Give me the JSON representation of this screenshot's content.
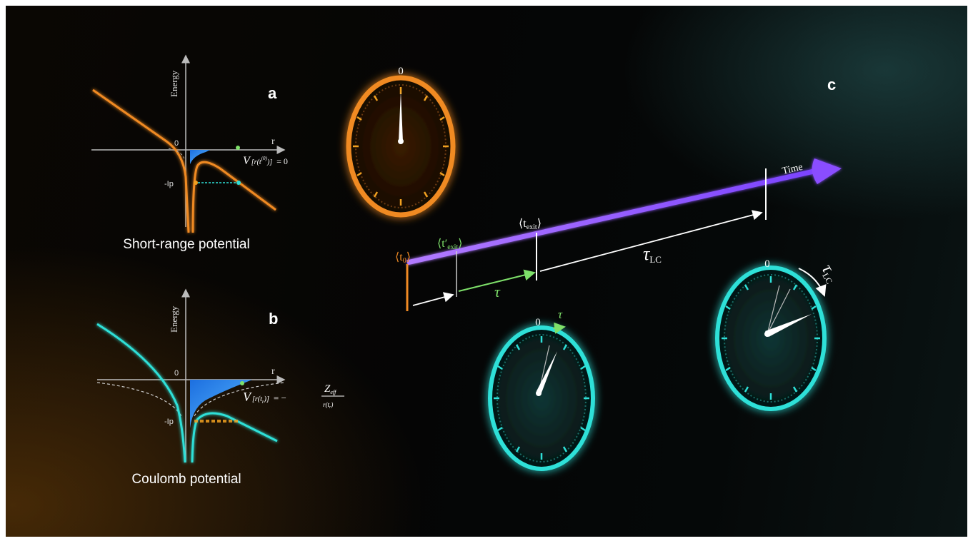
{
  "panels": {
    "a": {
      "letter": "a",
      "caption": "Short-range potential",
      "y_axis_label": "Energy",
      "x_axis_label": "r",
      "zero_label": "0",
      "ip_label": "-Ip",
      "equation_lhs": "V",
      "equation_arg": "[r(t",
      "equation_arg_sup": "(0)",
      "equation_arg_close": ")]",
      "equation_rhs": "= 0"
    },
    "b": {
      "letter": "b",
      "caption": "Coulomb potential",
      "y_axis_label": "Energy",
      "x_axis_label": "r",
      "zero_label": "0",
      "ip_label": "-Ip",
      "equation_lhs": "V",
      "equation_arg": "[r(t",
      "equation_arg_sub": "r",
      "equation_arg_close": ")]",
      "equation_eq": "= −",
      "equation_num": "Z",
      "equation_num_sub": "eff",
      "equation_den": "r(t",
      "equation_den_sub": "r",
      "equation_den_close": ")"
    },
    "c": {
      "letter": "c",
      "time_label": "Time",
      "t0_label": "⟨t",
      "t0_sub": "0",
      "t0_close": "⟩",
      "texit_prime_label": "⟨t′",
      "texit_prime_sub": "exit",
      "texit_prime_close": "⟩",
      "texit_label": "⟨t",
      "texit_sub": "exit",
      "texit_close": "⟩",
      "tau_label": "τ",
      "tau_lc_label": "τ",
      "tau_lc_sub": "LC"
    }
  },
  "clocks": {
    "orange": {
      "zero_label": "0",
      "color": "#e8862a"
    },
    "teal_middle": {
      "zero_label": "0",
      "tau_label": "τ",
      "color": "#2ad6d6"
    },
    "teal_right": {
      "zero_label": "0",
      "tau_label": "τ",
      "tau_sub": "LC",
      "color": "#2ad6d6"
    }
  },
  "colors": {
    "orange": "#f08a24",
    "teal": "#2ee0d8",
    "blue_fill": "#1f7be0",
    "green": "#7ee06a",
    "purple": "#8a4dff",
    "white": "#ffffff"
  }
}
